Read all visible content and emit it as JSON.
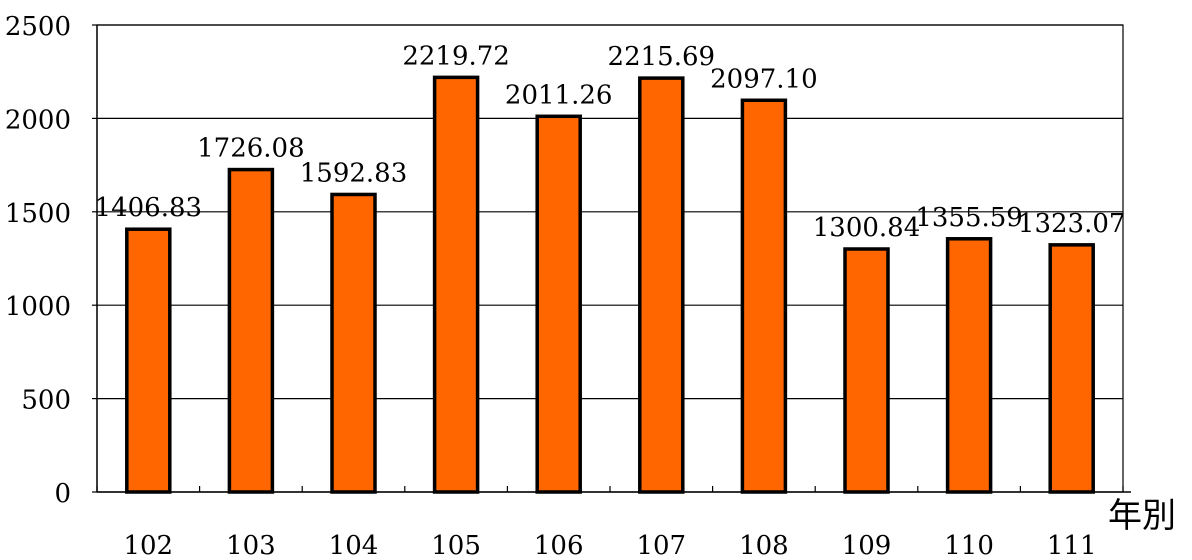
{
  "chart_data": {
    "type": "bar",
    "title": "",
    "xlabel": "年別",
    "ylabel": "",
    "categories": [
      "102",
      "103",
      "104",
      "105",
      "106",
      "107",
      "108",
      "109",
      "110",
      "111"
    ],
    "values": [
      1406.83,
      1726.08,
      1592.83,
      2219.72,
      2011.26,
      2215.69,
      2097.1,
      1300.84,
      1355.59,
      1323.07
    ],
    "data_labels": [
      "1406.83",
      "1726.08",
      "1592.83",
      "2219.72",
      "2011.26",
      "2215.69",
      "2097.10",
      "1300.84",
      "1355.59",
      "1323.07"
    ],
    "ylim": [
      0,
      2500
    ],
    "yticks": [
      0,
      500,
      1000,
      1500,
      2000,
      2500
    ],
    "ytick_labels": [
      "0",
      "500",
      "1000",
      "1500",
      "2000",
      "2500"
    ],
    "grid": true,
    "legend": "none",
    "bar_color": "#FF6600",
    "bar_edge_color": "#000000"
  }
}
